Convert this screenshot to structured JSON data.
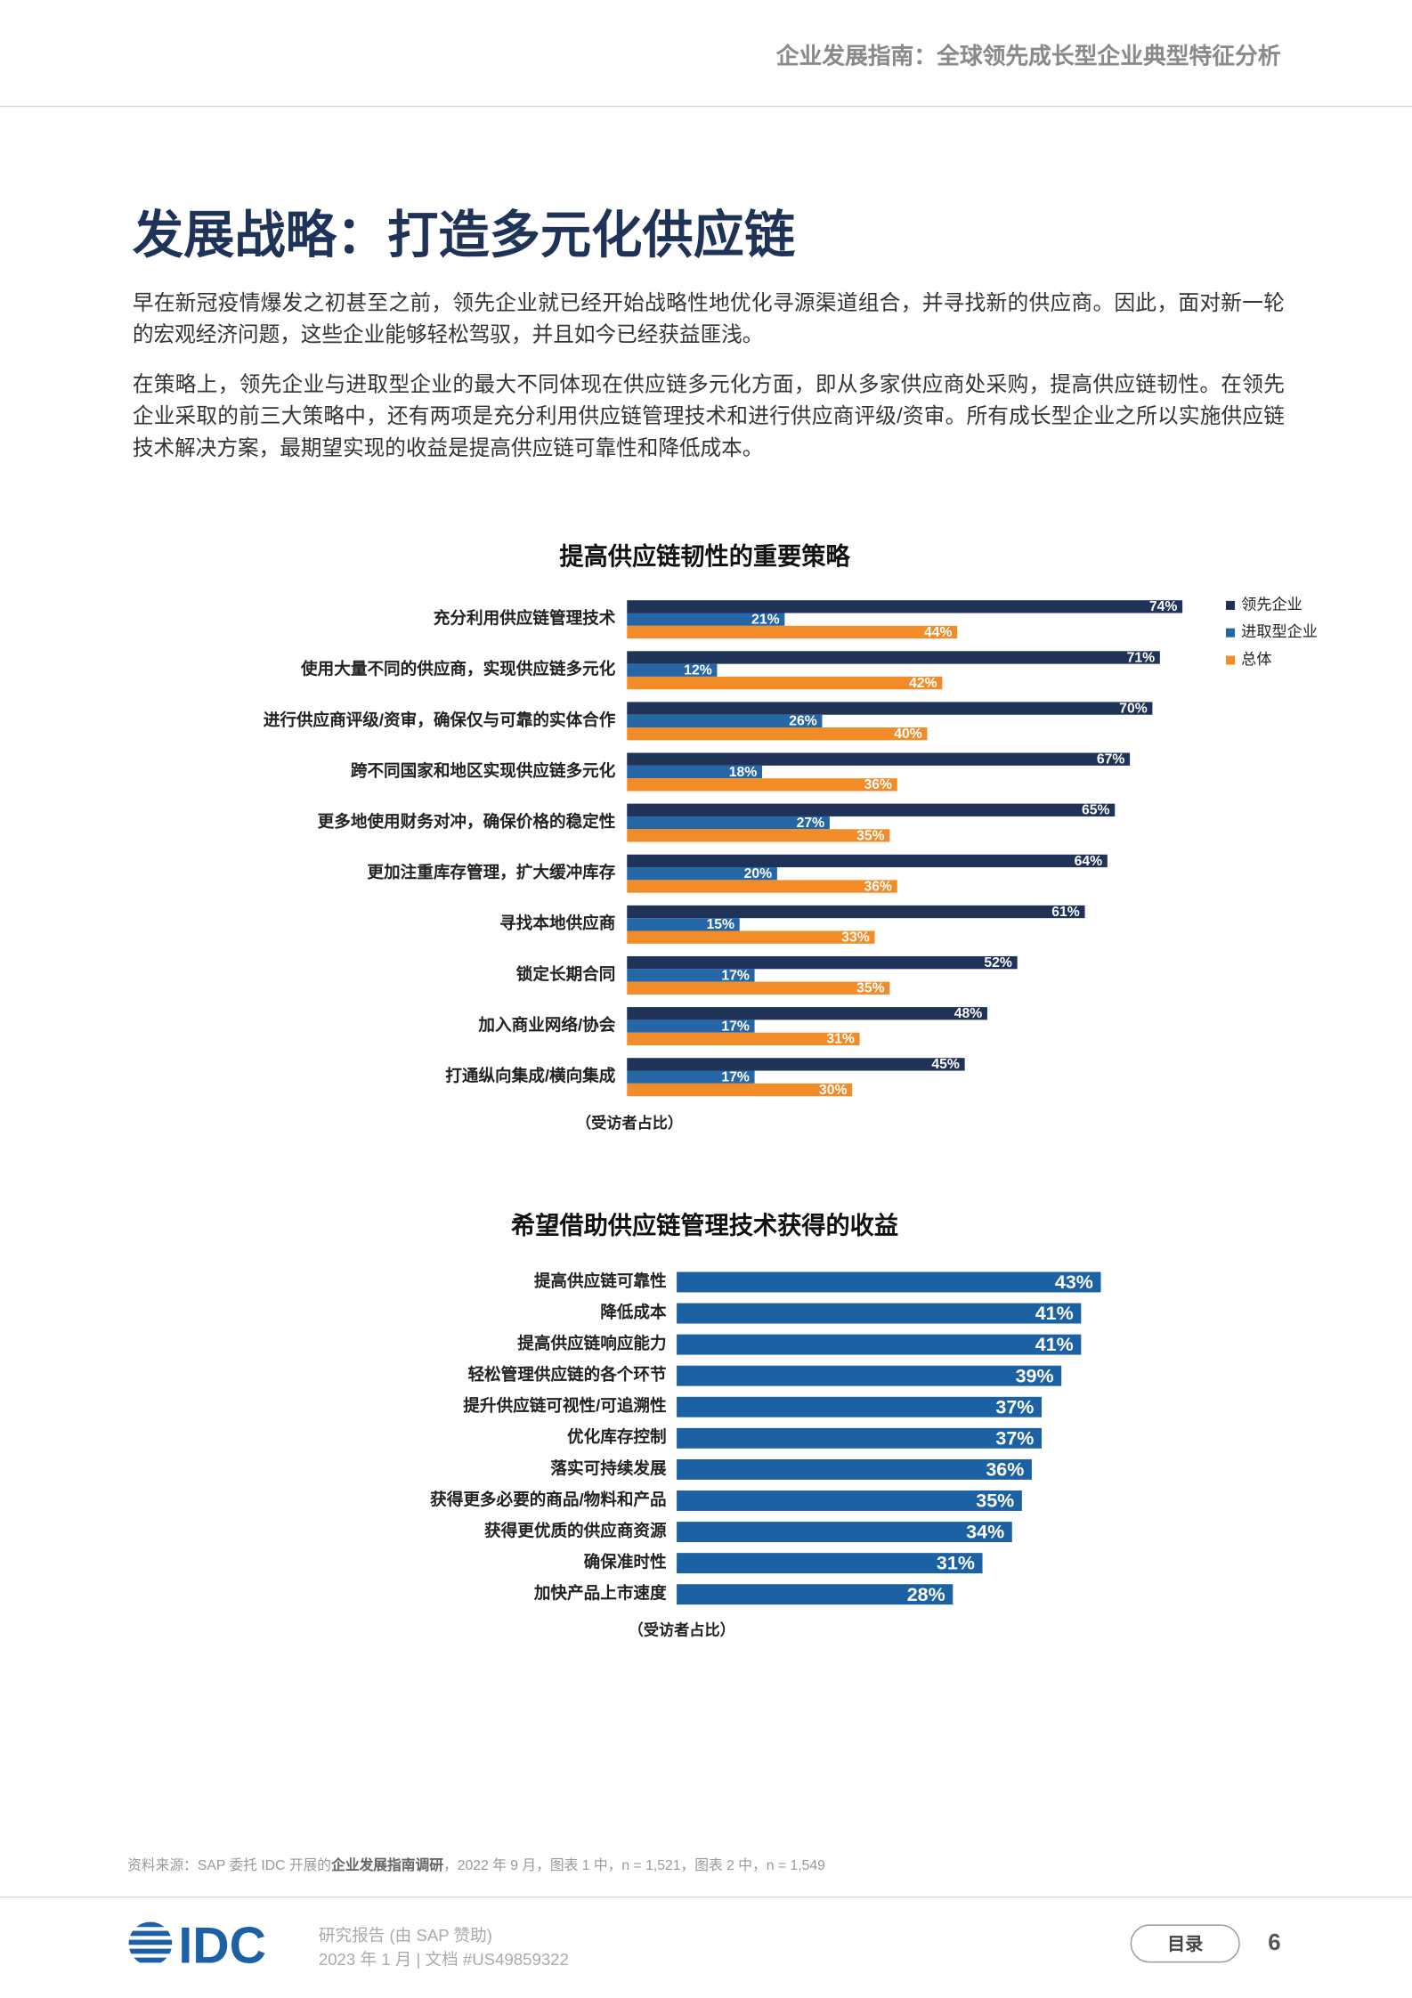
{
  "header": {
    "running_title": "企业发展指南：全球领先成长型企业典型特征分析"
  },
  "title": "发展战略：打造多元化供应链",
  "paragraphs": [
    "早在新冠疫情爆发之初甚至之前，领先企业就已经开始战略性地优化寻源渠道组合，并寻找新的供应商。因此，面对新一轮的宏观经济问题，这些企业能够轻松驾驭，并且如今已经获益匪浅。",
    "在策略上，领先企业与进取型企业的最大不同体现在供应链多元化方面，即从多家供应商处采购，提高供应链韧性。在领先企业采取的前三大策略中，还有两项是充分利用供应链管理技术和进行供应商评级/资审。所有成长型企业之所以实施供应链技术解决方案，最期望实现的收益是提高供应链可靠性和降低成本。"
  ],
  "chart_data": [
    {
      "type": "hbar-grouped",
      "title": "提高供应链韧性的重要策略",
      "x_label": "（受访者占比）",
      "categories": [
        "充分利用供应链管理技术",
        "使用大量不同的供应商，实现供应链多元化",
        "进行供应商评级/资审，确保仅与可靠的实体合作",
        "跨不同国家和地区实现供应链多元化",
        "更多地使用财务对冲，确保价格的稳定性",
        "更加注重库存管理，扩大缓冲库存",
        "寻找本地供应商",
        "锁定长期合同",
        "加入商业网络/协会",
        "打通纵向集成/横向集成"
      ],
      "series": [
        {
          "name": "领先企业",
          "color": "#1f3258",
          "values": [
            74,
            71,
            70,
            67,
            65,
            64,
            61,
            52,
            48,
            45
          ],
          "value_labels": [
            "74%",
            "71%",
            "70%",
            "67%",
            "65%",
            "64%",
            "61%",
            "52%",
            "48%",
            "45%"
          ]
        },
        {
          "name": "进取型企业",
          "color": "#2466a6",
          "values": [
            21,
            12,
            26,
            18,
            27,
            20,
            15,
            17,
            17,
            17
          ],
          "value_labels": [
            "21%",
            "12%",
            "26%",
            "18%",
            "27%",
            "20%",
            "15%",
            "17%",
            "17%",
            "17%"
          ]
        },
        {
          "name": "总体",
          "color": "#f28c28",
          "values": [
            44,
            42,
            40,
            36,
            35,
            36,
            33,
            35,
            31,
            30
          ],
          "value_labels": [
            "44%",
            "42%",
            "40%",
            "36%",
            "35%",
            "36%",
            "33%",
            "35%",
            "31%",
            "30%"
          ]
        }
      ]
    },
    {
      "type": "hbar",
      "title": "希望借助供应链管理技术获得的收益",
      "x_label": "（受访者占比）",
      "color": "#1c61a3",
      "categories": [
        "提高供应链可靠性",
        "降低成本",
        "提高供应链响应能力",
        "轻松管理供应链的各个环节",
        "提升供应链可视性/可追溯性",
        "优化库存控制",
        "落实可持续发展",
        "获得更多必要的商品/物料和产品",
        "获得更优质的供应商资源",
        "确保准时性",
        "加快产品上市速度"
      ],
      "values": [
        43,
        41,
        41,
        39,
        37,
        37,
        36,
        35,
        34,
        31,
        28
      ],
      "value_labels": [
        "43%",
        "41%",
        "41%",
        "39%",
        "37%",
        "37%",
        "36%",
        "35%",
        "34%",
        "31%",
        "28%"
      ]
    }
  ],
  "source": [
    "资料来源：SAP 委托 IDC 开展的",
    "企业发展指南调研",
    "，2022 年 9 月，图表 1 中，n = 1,521，图表 2 中，n = 1,549"
  ],
  "footer": {
    "logo": "IDC",
    "line1": "研究报告 (由 SAP 赞助)",
    "line2": "2023 年 1 月 | 文档 #US49859322",
    "toc_button": "目录",
    "page_number": "6"
  }
}
